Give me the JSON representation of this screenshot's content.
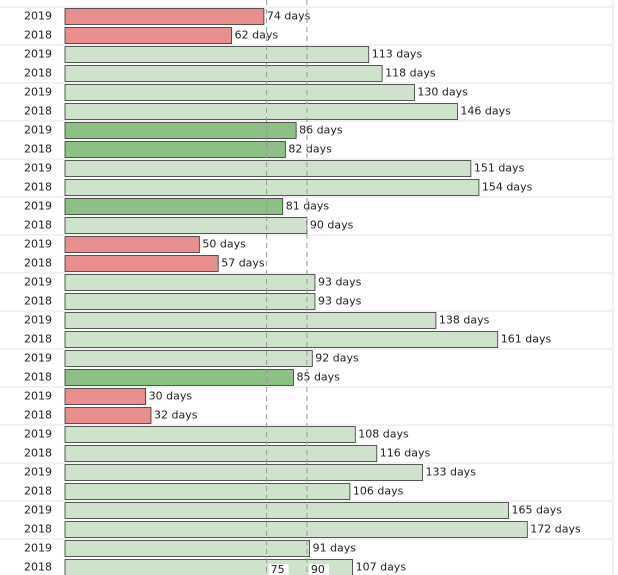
{
  "chart_data": {
    "type": "bar",
    "orientation": "horizontal",
    "xlim": [
      0,
      205
    ],
    "reference_lines": [
      75,
      90
    ],
    "series": [
      {
        "name": "2019",
        "values": [
          74,
          113,
          130,
          86,
          151,
          81,
          50,
          93,
          138,
          92,
          30,
          108,
          133,
          165,
          91
        ],
        "value_labels": [
          "74 days",
          "113 days",
          "130 days",
          "86 days",
          "151 days",
          "81 days",
          "50 days",
          "93 days",
          "138 days",
          "92 days",
          "30 days",
          "108 days",
          "133 days",
          "165 days",
          "91 days"
        ],
        "colors": [
          "#e88e8e",
          "#cfe3cc",
          "#cfe3cc",
          "#8cc084",
          "#cfe3cc",
          "#8cc084",
          "#e88e8e",
          "#cfe3cc",
          "#cfe3cc",
          "#cfe3cc",
          "#e88e8e",
          "#cfe3cc",
          "#cfe3cc",
          "#cfe3cc",
          "#cfe3cc"
        ]
      },
      {
        "name": "2018",
        "values": [
          62,
          118,
          146,
          82,
          154,
          90,
          57,
          93,
          161,
          85,
          32,
          116,
          106,
          172,
          107
        ],
        "value_labels": [
          "62 days",
          "118 days",
          "146 days",
          "82 days",
          "154 days",
          "90 days",
          "57 days",
          "93 days",
          "161 days",
          "85 days",
          "32 days",
          "116 days",
          "106 days",
          "172 days",
          "107 days"
        ],
        "colors": [
          "#e88e8e",
          "#cfe3cc",
          "#cfe3cc",
          "#8cc084",
          "#cfe3cc",
          "#cfe3cc",
          "#e88e8e",
          "#cfe3cc",
          "#cfe3cc",
          "#8cc084",
          "#e88e8e",
          "#cfe3cc",
          "#cfe3cc",
          "#cfe3cc",
          "#cfe3cc"
        ]
      }
    ]
  }
}
